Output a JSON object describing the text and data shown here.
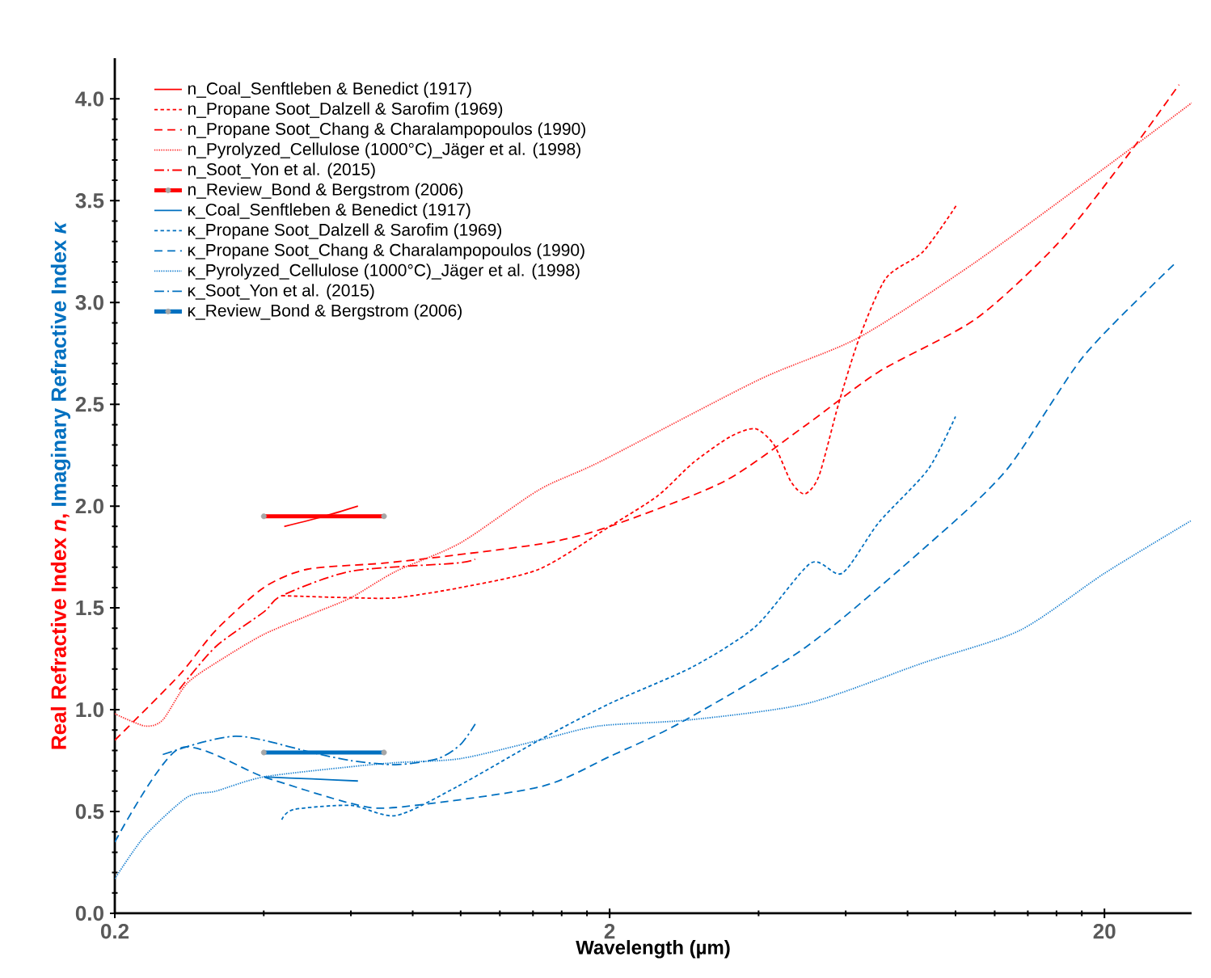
{
  "chart_data": {
    "type": "line",
    "xlabel": "Wavelength (µm)",
    "ylabel": "Real Refractive Index *n*,",
    "y2label": "Imaginary Refractive Index *κ*",
    "log": "x",
    "xlim": [
      0.2,
      30
    ],
    "xticks": [
      0.2,
      2,
      20
    ],
    "ylim": [
      0,
      4.2
    ],
    "yticks": [
      {
        "value": 0,
        "label": "0.0"
      },
      {
        "value": 0.5,
        "label": "0.5"
      },
      {
        "value": 1,
        "label": "1.0"
      },
      {
        "value": 1.5,
        "label": "1.5"
      },
      {
        "value": 2,
        "label": "2.0"
      },
      {
        "value": 2.5,
        "label": "2.5"
      },
      {
        "value": 3,
        "label": "3.0"
      },
      {
        "value": 3.5,
        "label": "3.5"
      },
      {
        "value": 4,
        "label": "4.0"
      }
    ],
    "legend": "top left",
    "series": [
      {
        "name": "n_Coal_Senftleben & Benedict (1917)",
        "color": "#ff0000",
        "line_style": "solid",
        "x": [
          0.44,
          0.53,
          0.62
        ],
        "values": [
          1.9,
          1.95,
          2.0
        ]
      },
      {
        "name": "n_Propane Soot_Dalzell & Sarofim (1969)",
        "color": "#ff0000",
        "line_style": "shortdash",
        "x": [
          0.435,
          0.6,
          0.74,
          1.0,
          1.44,
          2.0,
          2.5,
          2.94,
          3.5,
          3.94,
          4.3,
          4.65,
          4.96,
          5.3,
          5.8,
          6.4,
          7.24,
          8.6,
          10.06
        ],
        "values": [
          1.56,
          1.55,
          1.55,
          1.6,
          1.69,
          1.9,
          2.05,
          2.21,
          2.34,
          2.38,
          2.3,
          2.12,
          2.06,
          2.15,
          2.5,
          2.83,
          3.12,
          3.25,
          3.48
        ]
      },
      {
        "name": "n_Propane Soot_Chang & Charalampopoulos (1990)",
        "color": "#ff0000",
        "line_style": "dashed",
        "x": [
          0.2,
          0.27,
          0.32,
          0.4,
          0.49,
          0.7,
          0.98,
          1.5,
          2.0,
          3.4,
          5.0,
          7.0,
          11,
          16.1,
          22.4,
          28.3
        ],
        "values": [
          0.85,
          1.17,
          1.39,
          1.6,
          1.69,
          1.72,
          1.76,
          1.82,
          1.9,
          2.12,
          2.4,
          2.66,
          2.92,
          3.29,
          3.73,
          4.07
        ]
      },
      {
        "name": "n_Pyrolyzed_Cellulose (1000°C)_Jäger et al. (1998)",
        "color": "#ff3030",
        "line_style": "dotted",
        "x": [
          0.2,
          0.23,
          0.25,
          0.28,
          0.33,
          0.4,
          0.5,
          0.6,
          0.74,
          1.0,
          1.44,
          1.92,
          4.0,
          6.4,
          11,
          20,
          30
        ],
        "values": [
          0.98,
          0.92,
          0.95,
          1.13,
          1.25,
          1.37,
          1.47,
          1.55,
          1.68,
          1.82,
          2.08,
          2.22,
          2.62,
          2.83,
          3.2,
          3.66,
          3.98
        ]
      },
      {
        "name": "n_Soot_Yon et al. (2015)",
        "color": "#ff0000",
        "line_style": "dashdot",
        "x": [
          0.27,
          0.32,
          0.4,
          0.435,
          0.6,
          0.98,
          1.07
        ],
        "values": [
          1.1,
          1.31,
          1.48,
          1.56,
          1.68,
          1.72,
          1.74
        ]
      },
      {
        "name": "n_Review_Bond & Bergstrom (2006)",
        "color": "#ff0000",
        "line_style": "solid",
        "marker": "circle",
        "x": [
          0.4,
          0.7
        ],
        "values": [
          1.95,
          1.95
        ]
      },
      {
        "name": "κ_Coal_Senftleben & Benedict (1917)",
        "color": "#0070c0",
        "line_style": "solid",
        "x": [
          0.4,
          0.5,
          0.62
        ],
        "values": [
          0.67,
          0.66,
          0.65
        ]
      },
      {
        "name": "κ_Propane Soot_Dalzell & Sarofim (1969)",
        "color": "#0070c0",
        "line_style": "shortdash",
        "x": [
          0.435,
          0.46,
          0.6,
          0.74,
          0.98,
          1.44,
          2.0,
          2.94,
          3.95,
          5.1,
          5.9,
          7.0,
          8.8,
          10.0
        ],
        "values": [
          0.46,
          0.51,
          0.53,
          0.48,
          0.62,
          0.85,
          1.03,
          1.21,
          1.41,
          1.72,
          1.67,
          1.92,
          2.18,
          2.44
        ]
      },
      {
        "name": "κ_Propane Soot_Chang & Charalampopoulos (1990)",
        "color": "#0070c0",
        "line_style": "dashed",
        "x": [
          0.2,
          0.27,
          0.4,
          0.6,
          0.74,
          1.44,
          2.0,
          2.8,
          5.0,
          8.8,
          12.7,
          18.2,
          28
        ],
        "values": [
          0.35,
          0.81,
          0.67,
          0.54,
          0.52,
          0.62,
          0.77,
          0.94,
          1.31,
          1.81,
          2.18,
          2.74,
          3.2
        ]
      },
      {
        "name": "κ_Pyrolyzed_Cellulose (1000°C)_Jäger et al. (1998)",
        "color": "#1a80d0",
        "line_style": "dotted",
        "x": [
          0.2,
          0.23,
          0.28,
          0.32,
          0.4,
          0.6,
          0.74,
          1.0,
          1.44,
          1.9,
          2.9,
          5.0,
          8.6,
          13.5,
          20,
          30
        ],
        "values": [
          0.17,
          0.38,
          0.57,
          0.6,
          0.67,
          0.72,
          0.74,
          0.76,
          0.85,
          0.92,
          0.95,
          1.03,
          1.23,
          1.39,
          1.67,
          1.93
        ]
      },
      {
        "name": "κ_Soot_Yon et al. (2015)",
        "color": "#0070c0",
        "line_style": "dashdot",
        "x": [
          0.25,
          0.3,
          0.35,
          0.4,
          0.5,
          0.6,
          0.74,
          0.9,
          1.0,
          1.07
        ],
        "values": [
          0.78,
          0.84,
          0.87,
          0.85,
          0.79,
          0.75,
          0.73,
          0.76,
          0.83,
          0.93
        ]
      },
      {
        "name": "κ_Review_Bond & Bergstrom (2006)",
        "color": "#0070c0",
        "line_style": "solid",
        "marker": "circle",
        "x": [
          0.4,
          0.7
        ],
        "values": [
          0.79,
          0.79
        ]
      }
    ]
  }
}
